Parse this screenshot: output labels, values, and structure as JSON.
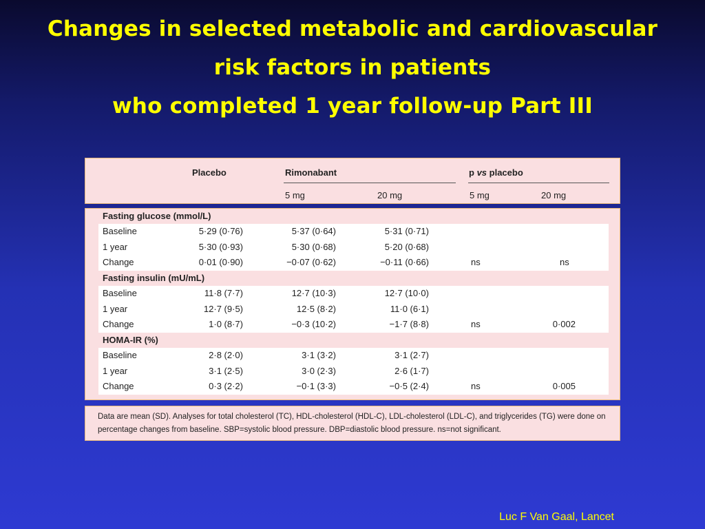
{
  "slide": {
    "title_lines": [
      "Changes in selected metabolic and cardiovascular",
      "risk factors in patients",
      "who completed 1 year follow-up Part III"
    ],
    "source": "Luc F Van Gaal, Lancet"
  },
  "table": {
    "header": {
      "placebo": "Placebo",
      "rimonabant": "Rimonabant",
      "p_vs_placebo": "p vs placebo",
      "rimo_5mg": "5 mg",
      "rimo_20mg": "20 mg",
      "p_5mg": "5 mg",
      "p_20mg": "20 mg"
    },
    "sections": [
      {
        "label": "Fasting glucose (mmol/L)",
        "rows": [
          {
            "label": "Baseline",
            "placebo": "5·29 (0·76)",
            "r5": "5·37 (0·64)",
            "r20": "5·31 (0·71)",
            "p5": "",
            "p20": ""
          },
          {
            "label": "1 year",
            "placebo": "5·30 (0·93)",
            "r5": "5·30 (0·68)",
            "r20": "5·20 (0·68)",
            "p5": "",
            "p20": ""
          },
          {
            "label": "Change",
            "placebo": "0·01 (0·90)",
            "r5": "−0·07 (0·62)",
            "r20": "−0·11 (0·66)",
            "p5": "ns",
            "p20": "ns"
          }
        ]
      },
      {
        "label": "Fasting insulin (mU/mL)",
        "rows": [
          {
            "label": "Baseline",
            "placebo": "11·8 (7·7)",
            "r5": "12·7 (10·3)",
            "r20": "12·7 (10·0)",
            "p5": "",
            "p20": ""
          },
          {
            "label": "1 year",
            "placebo": "12·7 (9·5)",
            "r5": "12·5 (8·2)",
            "r20": "11·0 (6·1)",
            "p5": "",
            "p20": ""
          },
          {
            "label": "Change",
            "placebo": "1·0 (8·7)",
            "r5": "−0·3 (10·2)",
            "r20": "−1·7 (8·8)",
            "p5": "ns",
            "p20": "0·002"
          }
        ]
      },
      {
        "label": "HOMA-IR (%)",
        "rows": [
          {
            "label": "Baseline",
            "placebo": "2·8 (2·0)",
            "r5": "3·1 (3·2)",
            "r20": "3·1 (2·7)",
            "p5": "",
            "p20": ""
          },
          {
            "label": "1 year",
            "placebo": "3·1 (2·5)",
            "r5": "3·0 (2·3)",
            "r20": "2·6 (1·7)",
            "p5": "",
            "p20": ""
          },
          {
            "label": "Change",
            "placebo": "0·3 (2·2)",
            "r5": "−0·1 (3·3)",
            "r20": "−0·5 (2·4)",
            "p5": "ns",
            "p20": "0·005"
          }
        ]
      }
    ],
    "footnote": "Data are mean (SD). Analyses for total cholesterol (TC), HDL-cholesterol (HDL-C), LDL-cholesterol (LDL-C), and triglycerides (TG) were done on percentage changes from baseline. SBP=systolic blood pressure. DBP=diastolic blood pressure. ns=not significant."
  }
}
